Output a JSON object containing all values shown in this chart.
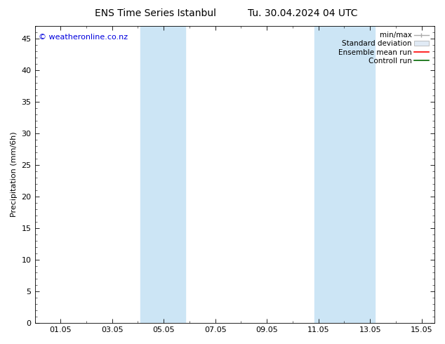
{
  "title_left": "ENS Time Series Istanbul",
  "title_right": "Tu. 30.04.2024 04 UTC",
  "ylabel": "Precipitation (mm/6h)",
  "watermark": "© weatheronline.co.nz",
  "watermark_color": "#0000dd",
  "xlim_start": 0.0,
  "xlim_end": 15.5,
  "ylim": [
    0,
    47
  ],
  "yticks": [
    0,
    5,
    10,
    15,
    20,
    25,
    30,
    35,
    40,
    45
  ],
  "xticks": [
    1,
    3,
    5,
    7,
    9,
    11,
    13,
    15
  ],
  "xtick_labels": [
    "01.05",
    "03.05",
    "05.05",
    "07.05",
    "09.05",
    "11.05",
    "13.05",
    "15.05"
  ],
  "shaded_regions": [
    {
      "xmin": 4.1,
      "xmax": 5.85,
      "color": "#cce5f5"
    },
    {
      "xmin": 10.85,
      "xmax": 13.2,
      "color": "#cce5f5"
    }
  ],
  "background_color": "#ffffff",
  "plot_bg_color": "#ffffff",
  "legend_labels": [
    "min/max",
    "Standard deviation",
    "Ensemble mean run",
    "Controll run"
  ],
  "legend_colors": [
    "#aaaaaa",
    "#cccccc",
    "#ff0000",
    "#006600"
  ],
  "title_fontsize": 10,
  "tick_fontsize": 8,
  "ylabel_fontsize": 8,
  "legend_fontsize": 7.5,
  "watermark_fontsize": 8
}
